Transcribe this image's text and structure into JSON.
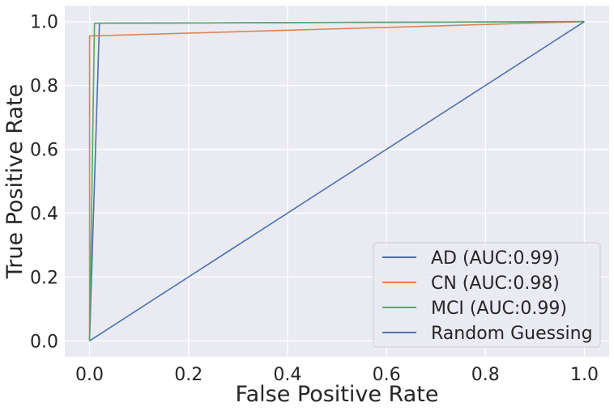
{
  "chart_data": {
    "type": "line",
    "xlabel": "False Positive Rate",
    "ylabel": "True Positive Rate",
    "xlim": [
      -0.05,
      1.05
    ],
    "ylim": [
      -0.05,
      1.05
    ],
    "xticks": [
      0.0,
      0.2,
      0.4,
      0.6,
      0.8,
      1.0
    ],
    "yticks": [
      0.0,
      0.2,
      0.4,
      0.6,
      0.8,
      1.0
    ],
    "xtick_labels": [
      "0.0",
      "0.2",
      "0.4",
      "0.6",
      "0.8",
      "1.0"
    ],
    "ytick_labels": [
      "0.0",
      "0.2",
      "0.4",
      "0.6",
      "0.8",
      "1.0"
    ],
    "grid": true,
    "legend_position": "bottom-right",
    "series": [
      {
        "name": "AD (AUC:0.99)",
        "color": "#4c72b0",
        "x": [
          0.0,
          0.02,
          1.0
        ],
        "y": [
          0.0,
          0.995,
          1.0
        ]
      },
      {
        "name": "CN (AUC:0.98)",
        "color": "#dd8452",
        "x": [
          0.0,
          0.0,
          1.0
        ],
        "y": [
          0.0,
          0.955,
          1.0
        ]
      },
      {
        "name": "MCI (AUC:0.99)",
        "color": "#55a868",
        "x": [
          0.0,
          0.01,
          1.0
        ],
        "y": [
          0.0,
          0.995,
          1.0
        ]
      },
      {
        "name": "Random Guessing",
        "color": "#4c72b0",
        "x": [
          0.0,
          1.0
        ],
        "y": [
          0.0,
          1.0
        ]
      }
    ]
  }
}
